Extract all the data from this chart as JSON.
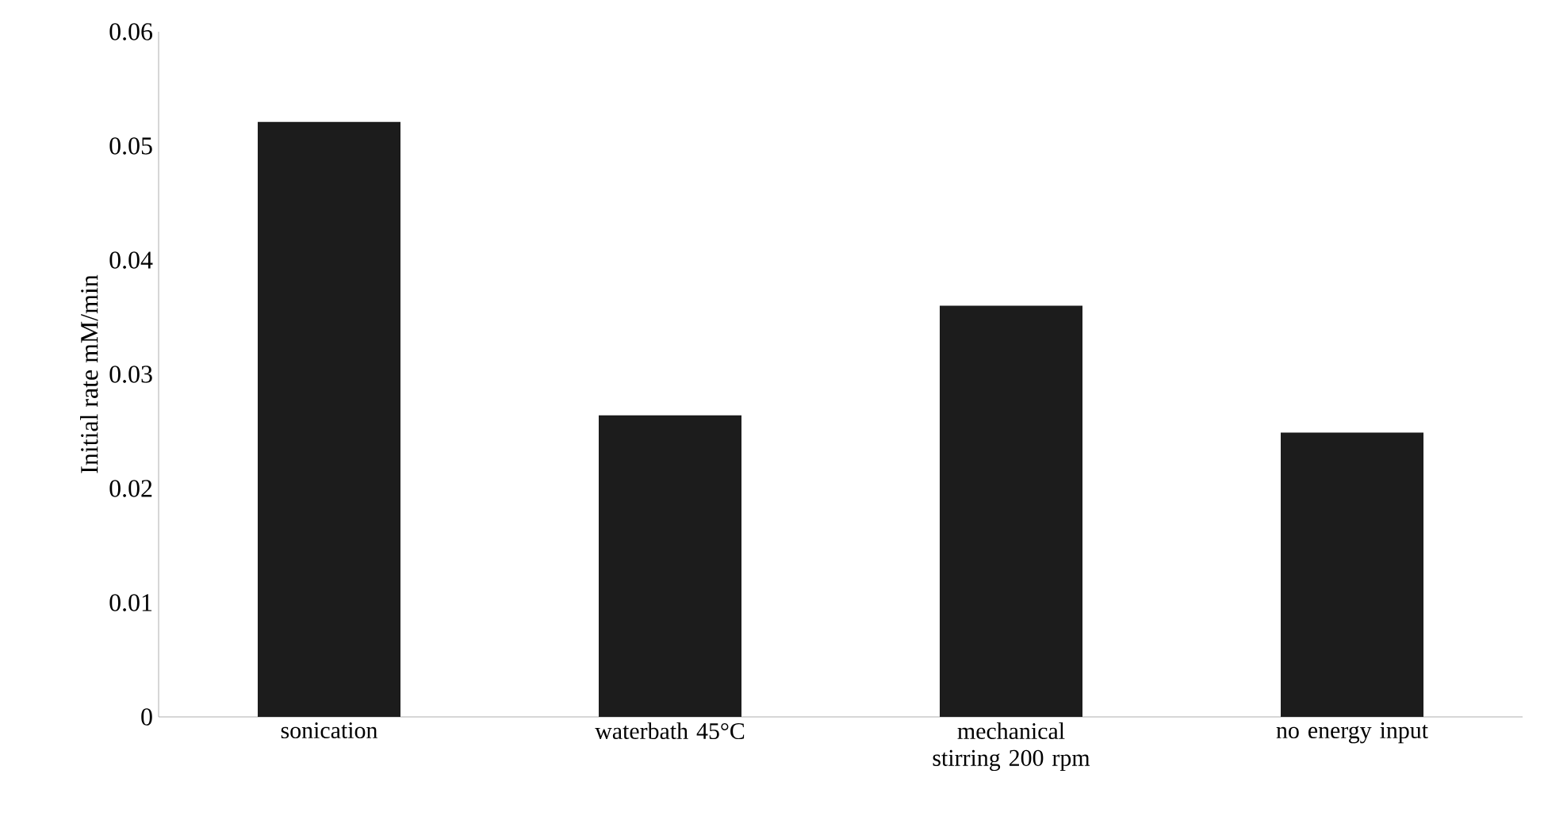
{
  "chart_data": {
    "type": "bar",
    "ylabel": "Initial rate mM/min",
    "categories": [
      "sonication",
      "waterbath 45°C",
      "mechanical stirring 200 rpm",
      "no energy input"
    ],
    "values": [
      0.0521,
      0.0264,
      0.036,
      0.0249
    ],
    "color": "#1c1c1c",
    "ylim": [
      0,
      0.06
    ],
    "yticks": [
      0,
      0.01,
      0.02,
      0.03,
      0.04,
      0.05,
      0.06
    ],
    "grid": false
  }
}
